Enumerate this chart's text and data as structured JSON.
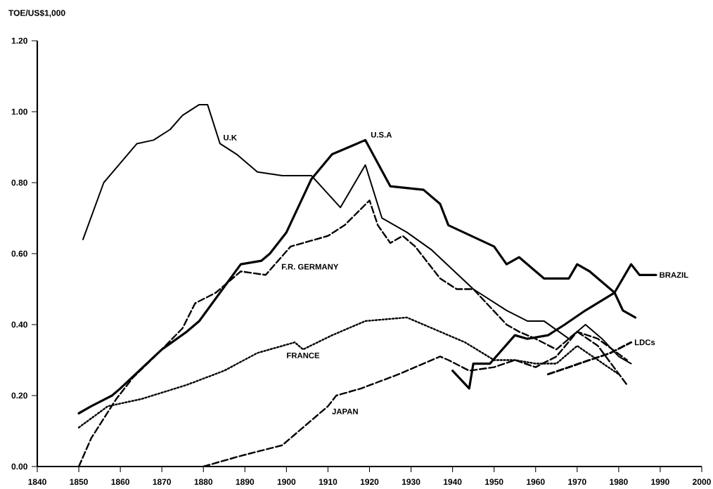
{
  "chart_data": {
    "type": "line",
    "ylabel": "TOE/US$1,000",
    "xlim": [
      1840,
      2000
    ],
    "xticks": [
      1840,
      1850,
      1860,
      1870,
      1880,
      1890,
      1900,
      1910,
      1920,
      1930,
      1940,
      1950,
      1960,
      1970,
      1980,
      1990,
      2000
    ],
    "ylim": [
      0,
      1.2
    ],
    "yticks": [
      {
        "value": 0,
        "label": "0.00"
      },
      {
        "value": 0.2,
        "label": "0.20"
      },
      {
        "value": 0.4,
        "label": "0.40"
      },
      {
        "value": 0.6,
        "label": "0.60"
      },
      {
        "value": 0.8,
        "label": "0.80"
      },
      {
        "value": 1.0,
        "label": "1.00"
      },
      {
        "value": 1.2,
        "label": "1.20"
      }
    ],
    "grid": false,
    "legend": false,
    "marker": "none",
    "series": [
      {
        "name": "U.K",
        "color": "#000000",
        "line_style": "solid",
        "x": [
          1851,
          1856,
          1864,
          1868,
          1872,
          1875,
          1879,
          1881,
          1884,
          1888,
          1893,
          1899,
          1906,
          1913,
          1919,
          1923,
          1929,
          1935,
          1945,
          1953,
          1958,
          1962,
          1968,
          1972,
          1976,
          1980,
          1983
        ],
        "values": [
          0.64,
          0.8,
          0.91,
          0.92,
          0.95,
          0.99,
          1.02,
          1.02,
          0.91,
          0.88,
          0.83,
          0.82,
          0.82,
          0.73,
          0.85,
          0.7,
          0.66,
          0.61,
          0.5,
          0.44,
          0.41,
          0.41,
          0.36,
          0.4,
          0.36,
          0.31,
          0.29
        ]
      },
      {
        "name": "U.S.A",
        "color": "#000000",
        "line_style": "solid",
        "x": [
          1850,
          1853,
          1858,
          1860,
          1870,
          1876,
          1879,
          1889,
          1894,
          1896,
          1900,
          1906,
          1911,
          1915,
          1919,
          1925,
          1933,
          1937,
          1939,
          1950,
          1953,
          1956,
          1962,
          1968,
          1970,
          1973,
          1979,
          1981,
          1984
        ],
        "values": [
          0.15,
          0.17,
          0.2,
          0.22,
          0.33,
          0.38,
          0.41,
          0.57,
          0.58,
          0.6,
          0.66,
          0.81,
          0.88,
          0.9,
          0.92,
          0.79,
          0.78,
          0.74,
          0.68,
          0.62,
          0.57,
          0.59,
          0.53,
          0.53,
          0.57,
          0.55,
          0.49,
          0.44,
          0.42
        ]
      },
      {
        "name": "F.R. GERMANY",
        "color": "#000000",
        "line_style": "dashed",
        "x": [
          1850,
          1853,
          1859,
          1863,
          1870,
          1875,
          1878,
          1883,
          1889,
          1895,
          1898,
          1901,
          1910,
          1914,
          1920,
          1922,
          1925,
          1928,
          1931,
          1937,
          1941,
          1945,
          1953,
          1956,
          1960,
          1965,
          1970,
          1975,
          1982
        ],
        "values": [
          0.0,
          0.08,
          0.19,
          0.25,
          0.33,
          0.39,
          0.46,
          0.49,
          0.55,
          0.54,
          0.58,
          0.62,
          0.65,
          0.68,
          0.75,
          0.68,
          0.63,
          0.65,
          0.62,
          0.53,
          0.5,
          0.5,
          0.4,
          0.38,
          0.36,
          0.33,
          0.38,
          0.34,
          0.23
        ]
      },
      {
        "name": "FRANCE",
        "color": "#000000",
        "line_style": "dotted",
        "x": [
          1850,
          1857,
          1865,
          1876,
          1885,
          1893,
          1902,
          1904,
          1911,
          1919,
          1929,
          1943,
          1950,
          1955,
          1960,
          1965,
          1970,
          1975,
          1980
        ],
        "values": [
          0.11,
          0.17,
          0.19,
          0.23,
          0.27,
          0.32,
          0.35,
          0.33,
          0.37,
          0.41,
          0.42,
          0.35,
          0.3,
          0.3,
          0.29,
          0.29,
          0.34,
          0.3,
          0.26
        ]
      },
      {
        "name": "JAPAN",
        "color": "#000000",
        "line_style": "dashed",
        "x": [
          1880,
          1889,
          1899,
          1902,
          1910,
          1912,
          1918,
          1927,
          1937,
          1939,
          1944,
          1950,
          1955,
          1960,
          1965,
          1970,
          1975,
          1982
        ],
        "values": [
          0.0,
          0.03,
          0.06,
          0.09,
          0.17,
          0.2,
          0.22,
          0.26,
          0.31,
          0.3,
          0.27,
          0.28,
          0.3,
          0.28,
          0.31,
          0.38,
          0.36,
          0.3
        ]
      },
      {
        "name": "BRAZIL",
        "color": "#000000",
        "line_style": "solid",
        "x": [
          1940,
          1944,
          1945,
          1949,
          1955,
          1958,
          1963,
          1967,
          1972,
          1979,
          1983,
          1985,
          1989
        ],
        "values": [
          0.27,
          0.22,
          0.29,
          0.29,
          0.37,
          0.36,
          0.37,
          0.4,
          0.44,
          0.49,
          0.57,
          0.54,
          0.54
        ]
      },
      {
        "name": "LDCs",
        "color": "#000000",
        "line_style": "dashed",
        "x": [
          1963,
          1968,
          1973,
          1978,
          1983
        ],
        "values": [
          0.26,
          0.28,
          0.3,
          0.32,
          0.35
        ]
      }
    ]
  }
}
